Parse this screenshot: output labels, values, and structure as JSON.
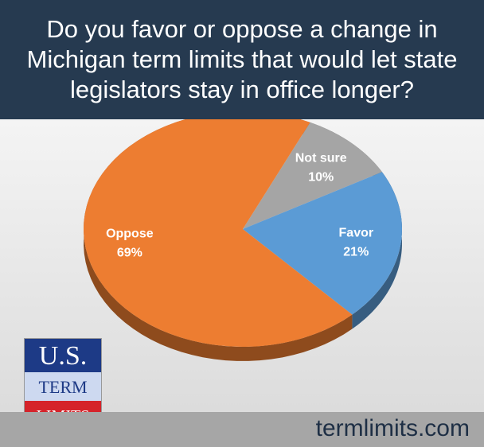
{
  "chart_data": {
    "type": "pie",
    "title": "Do you favor or oppose a change in Michigan term limits that would let state legislators stay in office longer?",
    "categories": [
      "Not sure",
      "Favor",
      "Oppose"
    ],
    "values": [
      10,
      21,
      69
    ],
    "value_labels": [
      "10%",
      "21%",
      "69%"
    ],
    "colors": [
      "#a5a5a5",
      "#5b9bd5",
      "#ed7d31"
    ]
  },
  "logo": {
    "lines": [
      "U.S.",
      "TERM",
      "LIMITS"
    ]
  },
  "footer": "termlimits.com"
}
